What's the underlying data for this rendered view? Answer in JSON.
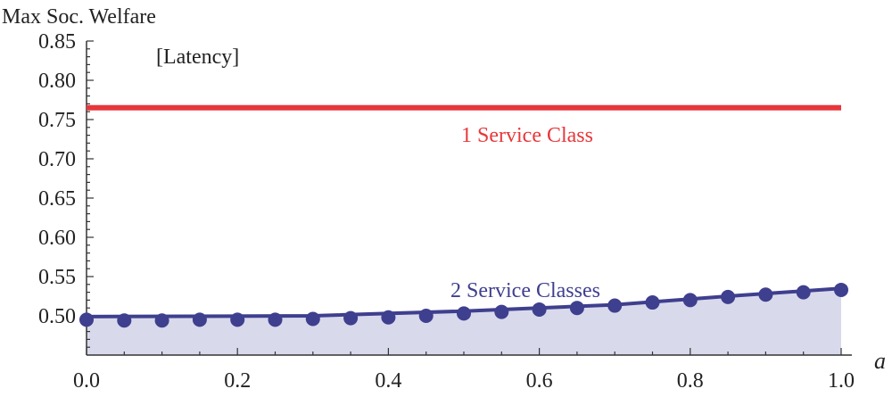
{
  "chart_data": {
    "type": "line",
    "ylabel": "Max Soc. Welfare",
    "xlabel": "a",
    "annotation": "[Latency]",
    "xlim": [
      0.0,
      1.0
    ],
    "ylim": [
      0.45,
      0.85
    ],
    "x_ticks": [
      "0.0",
      "0.2",
      "0.4",
      "0.6",
      "0.8",
      "1.0"
    ],
    "y_ticks": [
      "0.50",
      "0.55",
      "0.60",
      "0.65",
      "0.70",
      "0.75",
      "0.80",
      "0.85"
    ],
    "grid": false,
    "series": [
      {
        "name": "1 Service Class",
        "color": "#e8373a",
        "style": "line",
        "x": [
          0.0,
          1.0
        ],
        "values": [
          0.765,
          0.765
        ]
      },
      {
        "name": "2 Service Classes",
        "color": "#3f3f8f",
        "fill": "#d9d9ec",
        "style": "line+markers",
        "line_x": [
          0.0,
          0.3,
          0.5,
          0.7,
          0.85,
          1.0
        ],
        "line_values": [
          0.499,
          0.5,
          0.506,
          0.514,
          0.525,
          0.535
        ],
        "x": [
          0.0,
          0.05,
          0.1,
          0.15,
          0.2,
          0.25,
          0.3,
          0.35,
          0.4,
          0.45,
          0.5,
          0.55,
          0.6,
          0.65,
          0.7,
          0.75,
          0.8,
          0.85,
          0.9,
          0.95,
          1.0
        ],
        "values": [
          0.495,
          0.494,
          0.494,
          0.495,
          0.495,
          0.495,
          0.496,
          0.497,
          0.498,
          0.5,
          0.503,
          0.505,
          0.508,
          0.51,
          0.513,
          0.517,
          0.52,
          0.524,
          0.527,
          0.53,
          0.533
        ]
      }
    ]
  }
}
